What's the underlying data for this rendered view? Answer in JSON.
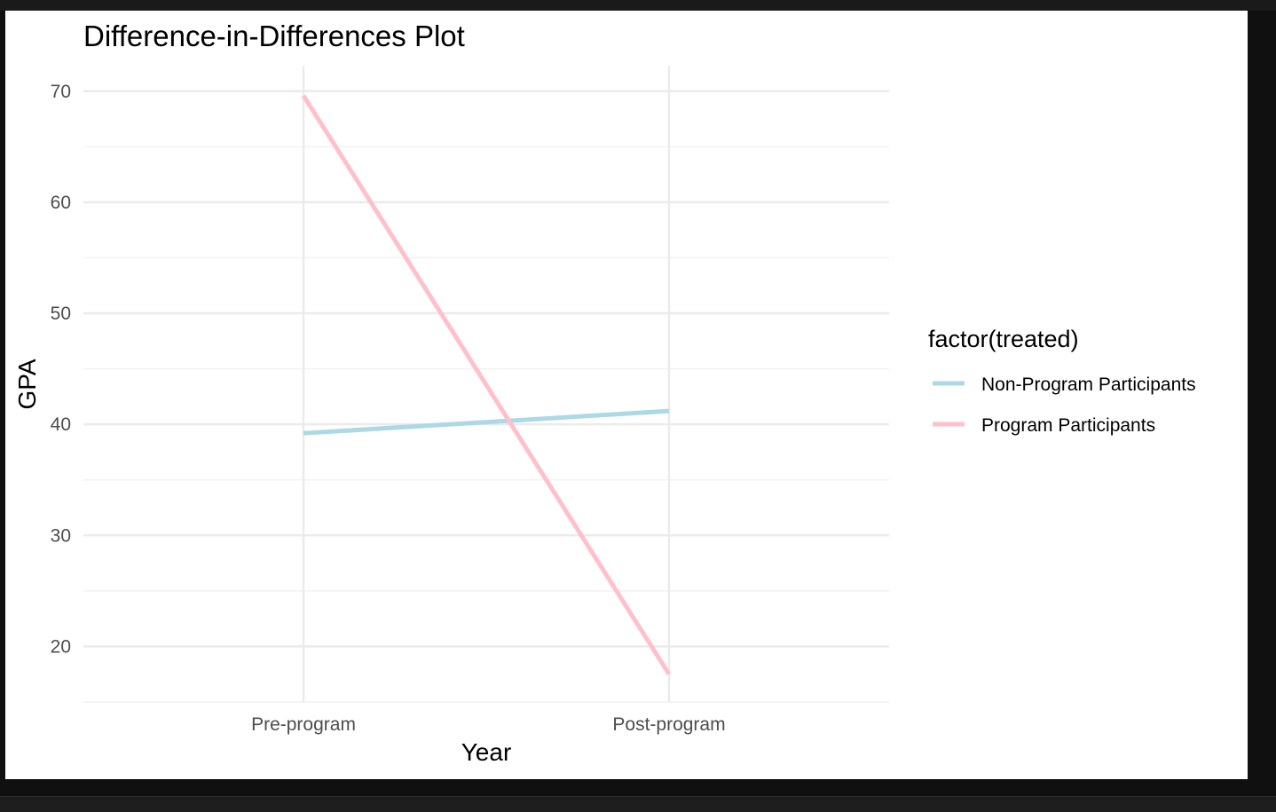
{
  "chart_data": {
    "type": "line",
    "title": "Difference-in-Differences Plot",
    "xlabel": "Year",
    "ylabel": "GPA",
    "categories": [
      "Pre-program",
      "Post-program"
    ],
    "ylim": [
      15,
      72.3
    ],
    "yticks": [
      20,
      30,
      40,
      50,
      60,
      70
    ],
    "grid": true,
    "legend": {
      "title": "factor(treated)",
      "position": "right"
    },
    "series": [
      {
        "name": "Non-Program Participants",
        "values": [
          39.2,
          41.2
        ],
        "color": "#add8e6"
      },
      {
        "name": "Program Participants",
        "values": [
          69.6,
          17.5
        ],
        "color": "#ffc0cb"
      }
    ]
  }
}
